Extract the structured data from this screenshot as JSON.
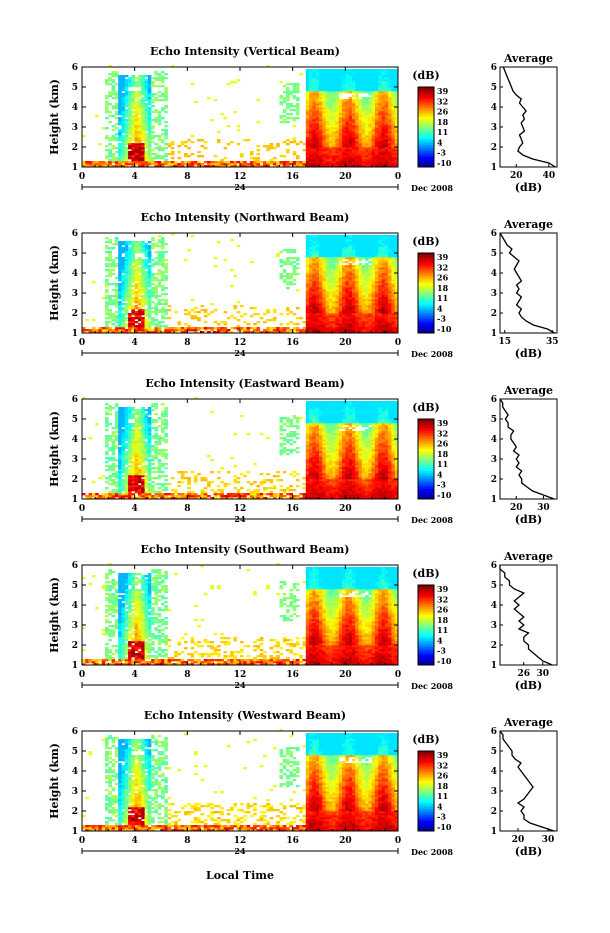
{
  "figure": {
    "xlabel": "Local Time",
    "date_label": "Dec 2008",
    "day_label": "24",
    "colorbar_unit": "(dB)",
    "colorbar_ticks": [
      "39",
      "32",
      "26",
      "18",
      "11",
      "4",
      "-3",
      "-10"
    ],
    "avg_title": "Average",
    "avg_xlabel": "(dB)",
    "height_label": "Height (km)"
  },
  "chart_data": [
    {
      "type": "heatmap",
      "title": "Echo Intensity (Vertical Beam)",
      "xlim": [
        0,
        24
      ],
      "ylim": [
        1,
        6
      ],
      "xticks": [
        "0",
        "4",
        "8",
        "12",
        "16",
        "20",
        "0"
      ],
      "yticks": [
        "1",
        "2",
        "3",
        "4",
        "5",
        "6"
      ],
      "avg": {
        "xlim": [
          10,
          45
        ],
        "xticks": [
          "20",
          "40"
        ],
        "profile": [
          [
            44,
            1.0
          ],
          [
            40,
            1.2
          ],
          [
            30,
            1.4
          ],
          [
            24,
            1.6
          ],
          [
            21,
            1.8
          ],
          [
            22,
            2.0
          ],
          [
            24,
            2.2
          ],
          [
            23,
            2.4
          ],
          [
            22,
            2.6
          ],
          [
            25,
            2.8
          ],
          [
            24,
            3.0
          ],
          [
            23,
            3.2
          ],
          [
            25,
            3.4
          ],
          [
            24,
            3.6
          ],
          [
            26,
            3.8
          ],
          [
            24,
            4.0
          ],
          [
            22,
            4.2
          ],
          [
            23,
            4.4
          ],
          [
            20,
            4.6
          ],
          [
            18,
            4.8
          ],
          [
            17,
            5.0
          ],
          [
            16,
            5.2
          ],
          [
            15,
            5.4
          ],
          [
            14,
            5.6
          ],
          [
            13,
            5.8
          ],
          [
            12,
            6.0
          ]
        ]
      }
    },
    {
      "type": "heatmap",
      "title": "Echo Intensity (Northward Beam)",
      "xlim": [
        0,
        24
      ],
      "ylim": [
        1,
        6
      ],
      "xticks": [
        "0",
        "4",
        "8",
        "12",
        "16",
        "20",
        "0"
      ],
      "yticks": [
        "1",
        "2",
        "3",
        "4",
        "5",
        "6"
      ],
      "avg": {
        "xlim": [
          13,
          37
        ],
        "xticks": [
          "15",
          "35"
        ],
        "profile": [
          [
            36,
            1.0
          ],
          [
            33,
            1.2
          ],
          [
            27,
            1.4
          ],
          [
            24,
            1.6
          ],
          [
            22,
            1.8
          ],
          [
            21,
            2.0
          ],
          [
            22,
            2.2
          ],
          [
            20,
            2.4
          ],
          [
            21,
            2.6
          ],
          [
            22,
            2.8
          ],
          [
            20,
            3.0
          ],
          [
            21,
            3.2
          ],
          [
            20,
            3.4
          ],
          [
            22,
            3.6
          ],
          [
            21,
            3.8
          ],
          [
            20,
            4.0
          ],
          [
            19,
            4.2
          ],
          [
            20,
            4.4
          ],
          [
            21,
            4.6
          ],
          [
            19,
            4.8
          ],
          [
            17,
            5.0
          ],
          [
            18,
            5.2
          ],
          [
            16,
            5.4
          ],
          [
            15,
            5.6
          ],
          [
            14,
            5.8
          ],
          [
            13,
            6.0
          ]
        ]
      }
    },
    {
      "type": "heatmap",
      "title": "Echo Intensity (Eastward Beam)",
      "xlim": [
        0,
        24
      ],
      "ylim": [
        1,
        6
      ],
      "xticks": [
        "0",
        "4",
        "8",
        "12",
        "16",
        "20",
        "0"
      ],
      "yticks": [
        "1",
        "2",
        "3",
        "4",
        "5",
        "6"
      ],
      "avg": {
        "xlim": [
          14,
          35
        ],
        "xticks": [
          "20",
          "30"
        ],
        "profile": [
          [
            34,
            1.0
          ],
          [
            30,
            1.2
          ],
          [
            26,
            1.4
          ],
          [
            24,
            1.6
          ],
          [
            22,
            1.8
          ],
          [
            22,
            2.0
          ],
          [
            21,
            2.2
          ],
          [
            22,
            2.4
          ],
          [
            20,
            2.6
          ],
          [
            21,
            2.8
          ],
          [
            20,
            3.0
          ],
          [
            21,
            3.2
          ],
          [
            19,
            3.4
          ],
          [
            20,
            3.6
          ],
          [
            19,
            3.8
          ],
          [
            18,
            4.0
          ],
          [
            18,
            4.2
          ],
          [
            19,
            4.4
          ],
          [
            17,
            4.6
          ],
          [
            17,
            4.8
          ],
          [
            16,
            5.0
          ],
          [
            17,
            5.2
          ],
          [
            16,
            5.4
          ],
          [
            15,
            5.6
          ],
          [
            15,
            5.8
          ],
          [
            14,
            6.0
          ]
        ]
      }
    },
    {
      "type": "heatmap",
      "title": "Echo Intensity (Southward Beam)",
      "xlim": [
        0,
        24
      ],
      "ylim": [
        1,
        6
      ],
      "xticks": [
        "0",
        "4",
        "8",
        "12",
        "16",
        "20",
        "0"
      ],
      "yticks": [
        "1",
        "2",
        "3",
        "4",
        "5",
        "6"
      ],
      "avg": {
        "xlim": [
          21,
          33
        ],
        "xticks": [
          "26",
          "30"
        ],
        "profile": [
          [
            32,
            1.0
          ],
          [
            30,
            1.2
          ],
          [
            29,
            1.4
          ],
          [
            28,
            1.6
          ],
          [
            27,
            1.8
          ],
          [
            27,
            2.0
          ],
          [
            26,
            2.2
          ],
          [
            26,
            2.4
          ],
          [
            27,
            2.6
          ],
          [
            25,
            2.8
          ],
          [
            26,
            3.0
          ],
          [
            25,
            3.2
          ],
          [
            26,
            3.4
          ],
          [
            25,
            3.6
          ],
          [
            24,
            3.8
          ],
          [
            25,
            4.0
          ],
          [
            24,
            4.2
          ],
          [
            25,
            4.4
          ],
          [
            26,
            4.6
          ],
          [
            24,
            4.8
          ],
          [
            23,
            5.0
          ],
          [
            23,
            5.2
          ],
          [
            22,
            5.4
          ],
          [
            22,
            5.6
          ],
          [
            21,
            5.8
          ],
          [
            21,
            6.0
          ]
        ]
      }
    },
    {
      "type": "heatmap",
      "title": "Echo Intensity (Westward Beam)",
      "xlim": [
        0,
        24
      ],
      "ylim": [
        1,
        6
      ],
      "xticks": [
        "0",
        "4",
        "8",
        "12",
        "16",
        "20",
        "0"
      ],
      "yticks": [
        "1",
        "2",
        "3",
        "4",
        "5",
        "6"
      ],
      "avg": {
        "xlim": [
          14,
          33
        ],
        "xticks": [
          "20",
          "30"
        ],
        "profile": [
          [
            32,
            1.0
          ],
          [
            28,
            1.2
          ],
          [
            24,
            1.4
          ],
          [
            22,
            1.6
          ],
          [
            22,
            1.8
          ],
          [
            21,
            2.0
          ],
          [
            22,
            2.2
          ],
          [
            20,
            2.4
          ],
          [
            22,
            2.6
          ],
          [
            23,
            2.8
          ],
          [
            24,
            3.0
          ],
          [
            25,
            3.2
          ],
          [
            24,
            3.4
          ],
          [
            23,
            3.6
          ],
          [
            22,
            3.8
          ],
          [
            21,
            4.0
          ],
          [
            20,
            4.2
          ],
          [
            21,
            4.4
          ],
          [
            19,
            4.6
          ],
          [
            18,
            4.8
          ],
          [
            18,
            5.0
          ],
          [
            17,
            5.2
          ],
          [
            16,
            5.4
          ],
          [
            15,
            5.6
          ],
          [
            15,
            5.8
          ],
          [
            14,
            6.0
          ]
        ]
      }
    }
  ]
}
